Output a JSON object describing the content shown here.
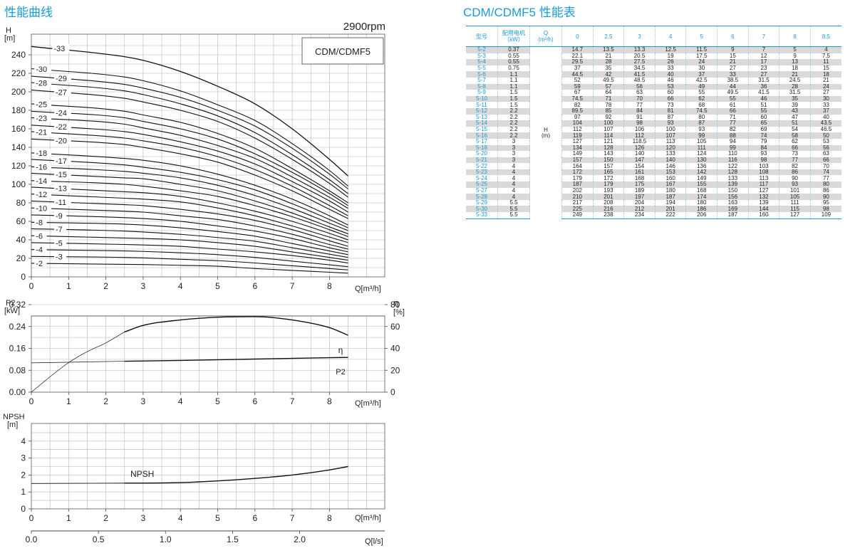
{
  "titles": {
    "curves": "性能曲线",
    "table": "CDM/CDMF5 性能表"
  },
  "chart_data": [
    {
      "type": "line",
      "title": "",
      "speed_label": "2900rpm",
      "model_label": "CDM/CDMF5",
      "ylabel": "H",
      "yunit": "[m]",
      "xlabel": "Q[m³/h]",
      "xlim": [
        0,
        9.5
      ],
      "ylim": [
        0,
        260
      ],
      "xticks": [
        0,
        1,
        2,
        3,
        4,
        5,
        6,
        7,
        8
      ],
      "yticks": [
        0,
        20,
        40,
        60,
        80,
        100,
        120,
        140,
        160,
        180,
        200,
        220,
        240
      ],
      "grid": true,
      "x": [
        0,
        2.5,
        3,
        4,
        5,
        6,
        7,
        8,
        8.5
      ],
      "series": [
        {
          "name": "-2",
          "values": [
            14.7,
            13.5,
            13.3,
            12.5,
            11.5,
            9,
            7,
            5,
            4
          ]
        },
        {
          "name": "-3",
          "values": [
            22.1,
            21,
            20.5,
            19,
            17.5,
            15,
            12,
            9,
            7.5
          ]
        },
        {
          "name": "-4",
          "values": [
            29.5,
            28,
            27.5,
            26,
            24,
            21,
            17,
            13,
            11
          ]
        },
        {
          "name": "-5",
          "values": [
            37,
            35,
            34.5,
            33,
            30,
            27,
            23,
            18,
            15
          ]
        },
        {
          "name": "-6",
          "values": [
            44.5,
            42,
            41.5,
            40,
            37,
            33,
            27,
            21,
            18
          ]
        },
        {
          "name": "-7",
          "values": [
            52,
            49.5,
            48.5,
            46,
            42.5,
            38.5,
            31.5,
            24.5,
            21
          ]
        },
        {
          "name": "-8",
          "values": [
            59,
            57,
            56,
            53,
            49,
            44,
            36,
            28,
            24
          ]
        },
        {
          "name": "-9",
          "values": [
            67,
            64,
            63,
            60,
            55,
            49.5,
            41.5,
            31.5,
            27
          ]
        },
        {
          "name": "-10",
          "values": [
            74.5,
            71,
            70,
            66,
            62,
            55,
            46,
            35,
            30
          ]
        },
        {
          "name": "-11",
          "values": [
            82,
            78,
            77,
            73,
            68,
            61,
            51,
            39,
            33
          ]
        },
        {
          "name": "-12",
          "values": [
            89.5,
            85,
            84,
            81,
            74.5,
            66,
            55,
            43,
            37
          ]
        },
        {
          "name": "-13",
          "values": [
            97,
            92,
            91,
            87,
            80,
            71,
            60,
            47,
            40
          ]
        },
        {
          "name": "-14",
          "values": [
            104,
            100,
            98,
            93,
            87,
            77,
            65,
            51,
            43.5
          ]
        },
        {
          "name": "-15",
          "values": [
            112,
            107,
            106,
            100,
            93,
            82,
            69,
            54,
            46.5
          ]
        },
        {
          "name": "-16",
          "values": [
            119,
            114,
            112,
            107,
            99,
            88,
            74,
            58,
            50
          ]
        },
        {
          "name": "-17",
          "values": [
            127,
            121,
            118.5,
            113,
            105,
            94,
            79,
            62,
            53
          ]
        },
        {
          "name": "-18",
          "values": [
            134,
            128,
            126,
            120,
            111,
            99,
            84,
            66,
            56
          ]
        },
        {
          "name": "-20",
          "values": [
            149,
            143,
            140,
            133,
            124,
            110,
            93,
            73,
            63
          ]
        },
        {
          "name": "-21",
          "values": [
            157,
            150,
            147,
            140,
            130,
            116,
            98,
            77,
            66
          ]
        },
        {
          "name": "-22",
          "values": [
            164,
            157,
            154,
            146,
            136,
            122,
            103,
            82,
            70
          ]
        },
        {
          "name": "-23",
          "values": [
            172,
            165,
            161,
            153,
            142,
            128,
            108,
            86,
            74
          ]
        },
        {
          "name": "-24",
          "values": [
            179,
            172,
            168,
            160,
            149,
            133,
            113,
            90,
            77
          ]
        },
        {
          "name": "-25",
          "values": [
            187,
            179,
            175,
            167,
            155,
            139,
            117,
            93,
            80
          ]
        },
        {
          "name": "-27",
          "values": [
            202,
            193,
            189,
            180,
            168,
            150,
            127,
            101,
            86
          ]
        },
        {
          "name": "-28",
          "values": [
            210,
            201,
            197,
            187,
            174,
            156,
            132,
            105,
            90
          ]
        },
        {
          "name": "-29",
          "values": [
            217,
            208,
            204,
            194,
            180,
            163,
            139,
            111,
            95
          ]
        },
        {
          "name": "-30",
          "values": [
            225,
            216,
            212,
            201,
            186,
            169,
            144,
            115,
            98
          ]
        },
        {
          "name": "-33",
          "values": [
            249,
            238,
            234,
            222,
            206,
            187,
            160,
            127,
            109
          ]
        }
      ]
    },
    {
      "type": "line",
      "title": "",
      "ylabel": "P2",
      "yunit": "[kW]",
      "y2label": "η",
      "y2unit": "[%]",
      "xlabel": "Q[m³/h]",
      "xlim": [
        0,
        9.5
      ],
      "ylim": [
        0,
        0.36
      ],
      "y2lim": [
        0,
        90
      ],
      "xticks": [
        0,
        1,
        2,
        3,
        4,
        5,
        6,
        7,
        8
      ],
      "yticks": [
        "0.00",
        "0.08",
        "0.16",
        "0.24",
        "0.32"
      ],
      "y2ticks": [
        0,
        20,
        40,
        60,
        80
      ],
      "grid": true,
      "series": [
        {
          "name": "η",
          "axis": "y2",
          "x": [
            0,
            0.5,
            1,
            1.5,
            2,
            2.5,
            3,
            4,
            5,
            6,
            7,
            8,
            8.5
          ],
          "values": [
            0,
            14,
            27,
            37,
            45,
            55,
            61,
            66,
            68.5,
            69,
            66,
            59,
            52
          ]
        },
        {
          "name": "P2",
          "axis": "y",
          "x": [
            0,
            2.5,
            4,
            6,
            8,
            8.5
          ],
          "values": [
            0.107,
            0.113,
            0.116,
            0.121,
            0.126,
            0.127
          ]
        }
      ]
    },
    {
      "type": "line",
      "title": "",
      "ylabel": "NPSH",
      "yunit": "[m]",
      "xlabel": "Q[m³/h]",
      "x2label": "Q[l/s]",
      "xlim": [
        0,
        9.5
      ],
      "ylim": [
        0,
        4.5
      ],
      "xticks": [
        0,
        1,
        2,
        3,
        4,
        5,
        6,
        7,
        8
      ],
      "yticks": [
        0,
        1,
        2,
        3,
        4
      ],
      "x2ticks": [
        "0.0",
        "0.5",
        "1.0",
        "1.5",
        "2.0"
      ],
      "grid": true,
      "series": [
        {
          "name": "NPSH",
          "x": [
            0,
            2.5,
            3,
            4,
            5,
            6,
            7,
            8,
            8.5
          ],
          "values": [
            1.5,
            1.52,
            1.52,
            1.55,
            1.65,
            1.8,
            2.0,
            2.3,
            2.5
          ]
        }
      ]
    }
  ],
  "table": {
    "headers": {
      "model": "型号",
      "motor": "配用电机",
      "motor_unit": "（kW）",
      "q": "Q",
      "q_unit": "(m³/h)",
      "flows": [
        "0",
        "2.5",
        "3",
        "4",
        "5",
        "6",
        "7",
        "8",
        "8.5"
      ]
    },
    "h_label": "H",
    "h_unit": "(m)",
    "rows": [
      {
        "model": "5-2",
        "kw": "0.37",
        "h": [
          "14.7",
          "13.5",
          "13.3",
          "12.5",
          "11.5",
          "9",
          "7",
          "5",
          "4"
        ]
      },
      {
        "model": "5-3",
        "kw": "0.55",
        "h": [
          "22.1",
          "21",
          "20.5",
          "19",
          "17.5",
          "15",
          "12",
          "9",
          "7.5"
        ]
      },
      {
        "model": "5-4",
        "kw": "0.55",
        "h": [
          "29.5",
          "28",
          "27.5",
          "26",
          "24",
          "21",
          "17",
          "13",
          "11"
        ]
      },
      {
        "model": "5-5",
        "kw": "0.75",
        "h": [
          "37",
          "35",
          "34.5",
          "33",
          "30",
          "27",
          "23",
          "18",
          "15"
        ]
      },
      {
        "model": "5-6",
        "kw": "1.1",
        "h": [
          "44.5",
          "42",
          "41.5",
          "40",
          "37",
          "33",
          "27",
          "21",
          "18"
        ]
      },
      {
        "model": "5-7",
        "kw": "1.1",
        "h": [
          "52",
          "49.5",
          "48.5",
          "46",
          "42.5",
          "38.5",
          "31.5",
          "24.5",
          "21"
        ]
      },
      {
        "model": "5-8",
        "kw": "1.1",
        "h": [
          "59",
          "57",
          "56",
          "53",
          "49",
          "44",
          "36",
          "28",
          "24"
        ]
      },
      {
        "model": "5-9",
        "kw": "1.5",
        "h": [
          "67",
          "64",
          "63",
          "60",
          "55",
          "49.5",
          "41.5",
          "31.5",
          "27"
        ]
      },
      {
        "model": "5-10",
        "kw": "1.5",
        "h": [
          "74.5",
          "71",
          "70",
          "66",
          "62",
          "55",
          "46",
          "35",
          "30"
        ]
      },
      {
        "model": "5-11",
        "kw": "1.5",
        "h": [
          "82",
          "78",
          "77",
          "73",
          "68",
          "61",
          "51",
          "39",
          "33"
        ]
      },
      {
        "model": "5-12",
        "kw": "2.2",
        "h": [
          "89.5",
          "85",
          "84",
          "81",
          "74.5",
          "66",
          "55",
          "43",
          "37"
        ]
      },
      {
        "model": "5-13",
        "kw": "2.2",
        "h": [
          "97",
          "92",
          "91",
          "87",
          "80",
          "71",
          "60",
          "47",
          "40"
        ]
      },
      {
        "model": "5-14",
        "kw": "2.2",
        "h": [
          "104",
          "100",
          "98",
          "93",
          "87",
          "77",
          "65",
          "51",
          "43.5"
        ]
      },
      {
        "model": "5-15",
        "kw": "2.2",
        "h": [
          "112",
          "107",
          "106",
          "100",
          "93",
          "82",
          "69",
          "54",
          "46.5"
        ]
      },
      {
        "model": "5-16",
        "kw": "2.2",
        "h": [
          "119",
          "114",
          "112",
          "107",
          "99",
          "88",
          "74",
          "58",
          "50"
        ]
      },
      {
        "model": "5-17",
        "kw": "3",
        "h": [
          "127",
          "121",
          "118.5",
          "113",
          "105",
          "94",
          "79",
          "62",
          "53"
        ]
      },
      {
        "model": "5-18",
        "kw": "3",
        "h": [
          "134",
          "128",
          "126",
          "120",
          "111",
          "99",
          "84",
          "66",
          "56"
        ]
      },
      {
        "model": "5-20",
        "kw": "3",
        "h": [
          "149",
          "143",
          "140",
          "133",
          "124",
          "110",
          "93",
          "73",
          "63"
        ]
      },
      {
        "model": "5-21",
        "kw": "3",
        "h": [
          "157",
          "150",
          "147",
          "140",
          "130",
          "116",
          "98",
          "77",
          "66"
        ]
      },
      {
        "model": "5-22",
        "kw": "4",
        "h": [
          "164",
          "157",
          "154",
          "146",
          "136",
          "122",
          "103",
          "82",
          "70"
        ]
      },
      {
        "model": "5-23",
        "kw": "4",
        "h": [
          "172",
          "165",
          "161",
          "153",
          "142",
          "128",
          "108",
          "86",
          "74"
        ]
      },
      {
        "model": "5-24",
        "kw": "4",
        "h": [
          "179",
          "172",
          "168",
          "160",
          "149",
          "133",
          "113",
          "90",
          "77"
        ]
      },
      {
        "model": "5-25",
        "kw": "4",
        "h": [
          "187",
          "179",
          "175",
          "167",
          "155",
          "139",
          "117",
          "93",
          "80"
        ]
      },
      {
        "model": "5-27",
        "kw": "4",
        "h": [
          "202",
          "193",
          "189",
          "180",
          "168",
          "150",
          "127",
          "101",
          "86"
        ]
      },
      {
        "model": "5-28",
        "kw": "4",
        "h": [
          "210",
          "201",
          "197",
          "187",
          "174",
          "156",
          "132",
          "105",
          "90"
        ]
      },
      {
        "model": "5-29",
        "kw": "5.5",
        "h": [
          "217",
          "208",
          "204",
          "194",
          "180",
          "163",
          "139",
          "111",
          "95"
        ]
      },
      {
        "model": "5-30",
        "kw": "5.5",
        "h": [
          "225",
          "216",
          "212",
          "201",
          "186",
          "169",
          "144",
          "115",
          "98"
        ]
      },
      {
        "model": "5-33",
        "kw": "5.5",
        "h": [
          "249",
          "238",
          "234",
          "222",
          "206",
          "187",
          "160",
          "127",
          "109"
        ]
      }
    ]
  },
  "colors": {
    "accent": "#1a9bd7",
    "row_shade": "#dadada",
    "grid": "#b5b5b5",
    "curve": "#111111"
  }
}
